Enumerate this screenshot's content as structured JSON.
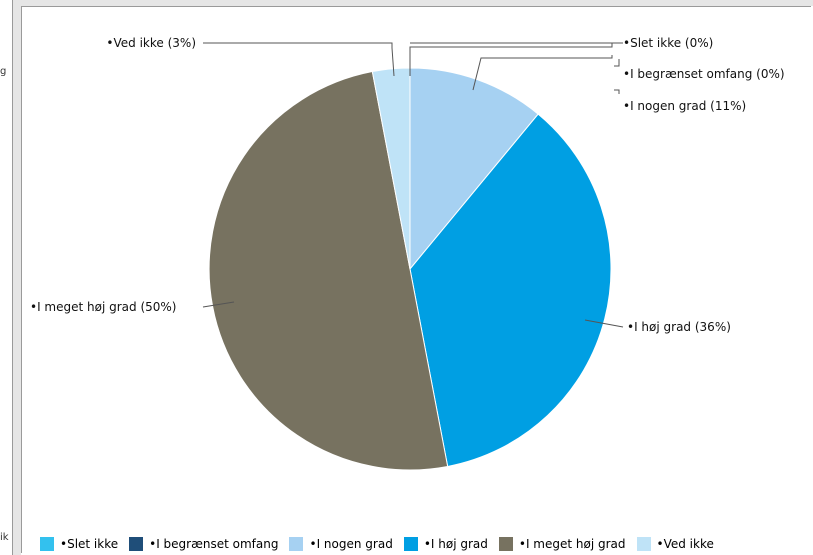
{
  "left_panel": {
    "fragments": [
      "g",
      "ik"
    ]
  },
  "chart_data": {
    "type": "pie",
    "title": "",
    "legend_position": "bottom",
    "slices": [
      {
        "label": "•Slet ikke",
        "value": 0,
        "callout": "•Slet ikke (0%)",
        "color": "#33c1ee"
      },
      {
        "label": "•I begrænset omfang",
        "value": 0,
        "callout": "•I begrænset omfang (0%)",
        "color": "#1f4e79"
      },
      {
        "label": "•I nogen grad",
        "value": 11,
        "callout": "•I nogen grad (11%)",
        "color": "#a6d1f2"
      },
      {
        "label": "•I høj grad",
        "value": 36,
        "callout": "•I høj grad (36%)",
        "color": "#009fe3"
      },
      {
        "label": "•I meget høj grad",
        "value": 50,
        "callout": "•I meget høj grad (50%)",
        "color": "#777260"
      },
      {
        "label": "•Ved ikke",
        "value": 3,
        "callout": "•Ved ikke (3%)",
        "color": "#bfe3f7"
      }
    ]
  }
}
